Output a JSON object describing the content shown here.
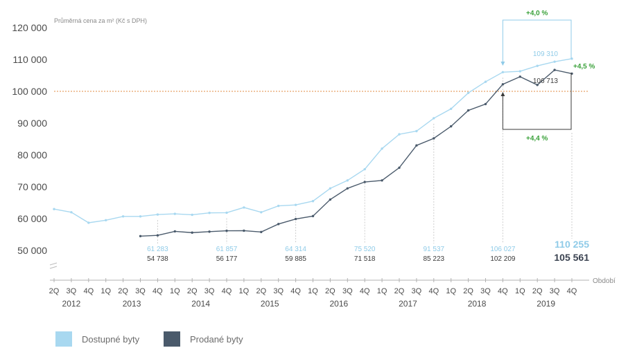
{
  "chart_data": {
    "type": "line",
    "ylabel": "Průměrná cena za m² (Kč s DPH)",
    "xlabel": "Období",
    "ylim": [
      45000,
      120000
    ],
    "y_ticks": [
      {
        "value": 120000,
        "label": "120 000"
      },
      {
        "value": 110000,
        "label": "110 000"
      },
      {
        "value": 100000,
        "label": "100 000"
      },
      {
        "value": 90000,
        "label": "90 000"
      },
      {
        "value": 80000,
        "label": "80 000"
      },
      {
        "value": 70000,
        "label": "70 000"
      },
      {
        "value": 60000,
        "label": "60 000"
      },
      {
        "value": 50000,
        "label": "50 000"
      }
    ],
    "categories": [
      "2Q",
      "3Q",
      "4Q",
      "1Q",
      "2Q",
      "3Q",
      "4Q",
      "1Q",
      "2Q",
      "3Q",
      "4Q",
      "1Q",
      "2Q",
      "3Q",
      "4Q",
      "1Q",
      "2Q",
      "3Q",
      "4Q",
      "1Q",
      "2Q",
      "3Q",
      "4Q",
      "1Q",
      "2Q",
      "3Q",
      "4Q",
      "1Q",
      "2Q",
      "3Q",
      "4Q"
    ],
    "years": [
      {
        "label": "2012",
        "start": 0,
        "end": 2
      },
      {
        "label": "2013",
        "start": 3,
        "end": 6
      },
      {
        "label": "2014",
        "start": 7,
        "end": 10
      },
      {
        "label": "2015",
        "start": 11,
        "end": 14
      },
      {
        "label": "2016",
        "start": 15,
        "end": 18
      },
      {
        "label": "2017",
        "start": 19,
        "end": 22
      },
      {
        "label": "2018",
        "start": 23,
        "end": 26
      },
      {
        "label": "2019",
        "start": 27,
        "end": 30
      }
    ],
    "series": [
      {
        "name": "Dostupné byty",
        "color": "#a8d8f0",
        "values": [
          63000,
          62000,
          58700,
          59500,
          60700,
          60700,
          61283,
          61500,
          61200,
          61800,
          61857,
          63500,
          62000,
          64000,
          64314,
          65500,
          69500,
          72000,
          75520,
          82000,
          86500,
          87500,
          91537,
          94500,
          99500,
          103000,
          106027,
          106300,
          108000,
          109310,
          110255
        ]
      },
      {
        "name": "Prodané byty",
        "color": "#4a5a6b",
        "values": [
          null,
          null,
          null,
          null,
          null,
          54500,
          54738,
          56000,
          55600,
          55900,
          56177,
          56200,
          55800,
          58300,
          59885,
          60800,
          66000,
          69500,
          71518,
          72000,
          76000,
          83000,
          85223,
          89000,
          94000,
          96000,
          102209,
          104600,
          102000,
          106713,
          105561
        ]
      }
    ],
    "reference_line": {
      "value": 100000,
      "color": "#e08a3c"
    },
    "annotations": [
      {
        "index": 6,
        "top": "61 283",
        "bottom": "54 738"
      },
      {
        "index": 10,
        "top": "61 857",
        "bottom": "56 177"
      },
      {
        "index": 14,
        "top": "64 314",
        "bottom": "59 885"
      },
      {
        "index": 18,
        "top": "75 520",
        "bottom": "71 518"
      },
      {
        "index": 22,
        "top": "91 537",
        "bottom": "85 223"
      },
      {
        "index": 26,
        "top": "106 027",
        "bottom": "102 209"
      }
    ],
    "callouts": {
      "top_pct": "+4,0 %",
      "bottom_pct": "+4,4 %",
      "right_pct": "+4,5 %",
      "light_near_end": "109 310",
      "dark_near_end": "106 713",
      "final_light": "110 255",
      "final_dark": "105 561"
    },
    "legend": [
      "Dostupné byty",
      "Prodané byty"
    ]
  }
}
